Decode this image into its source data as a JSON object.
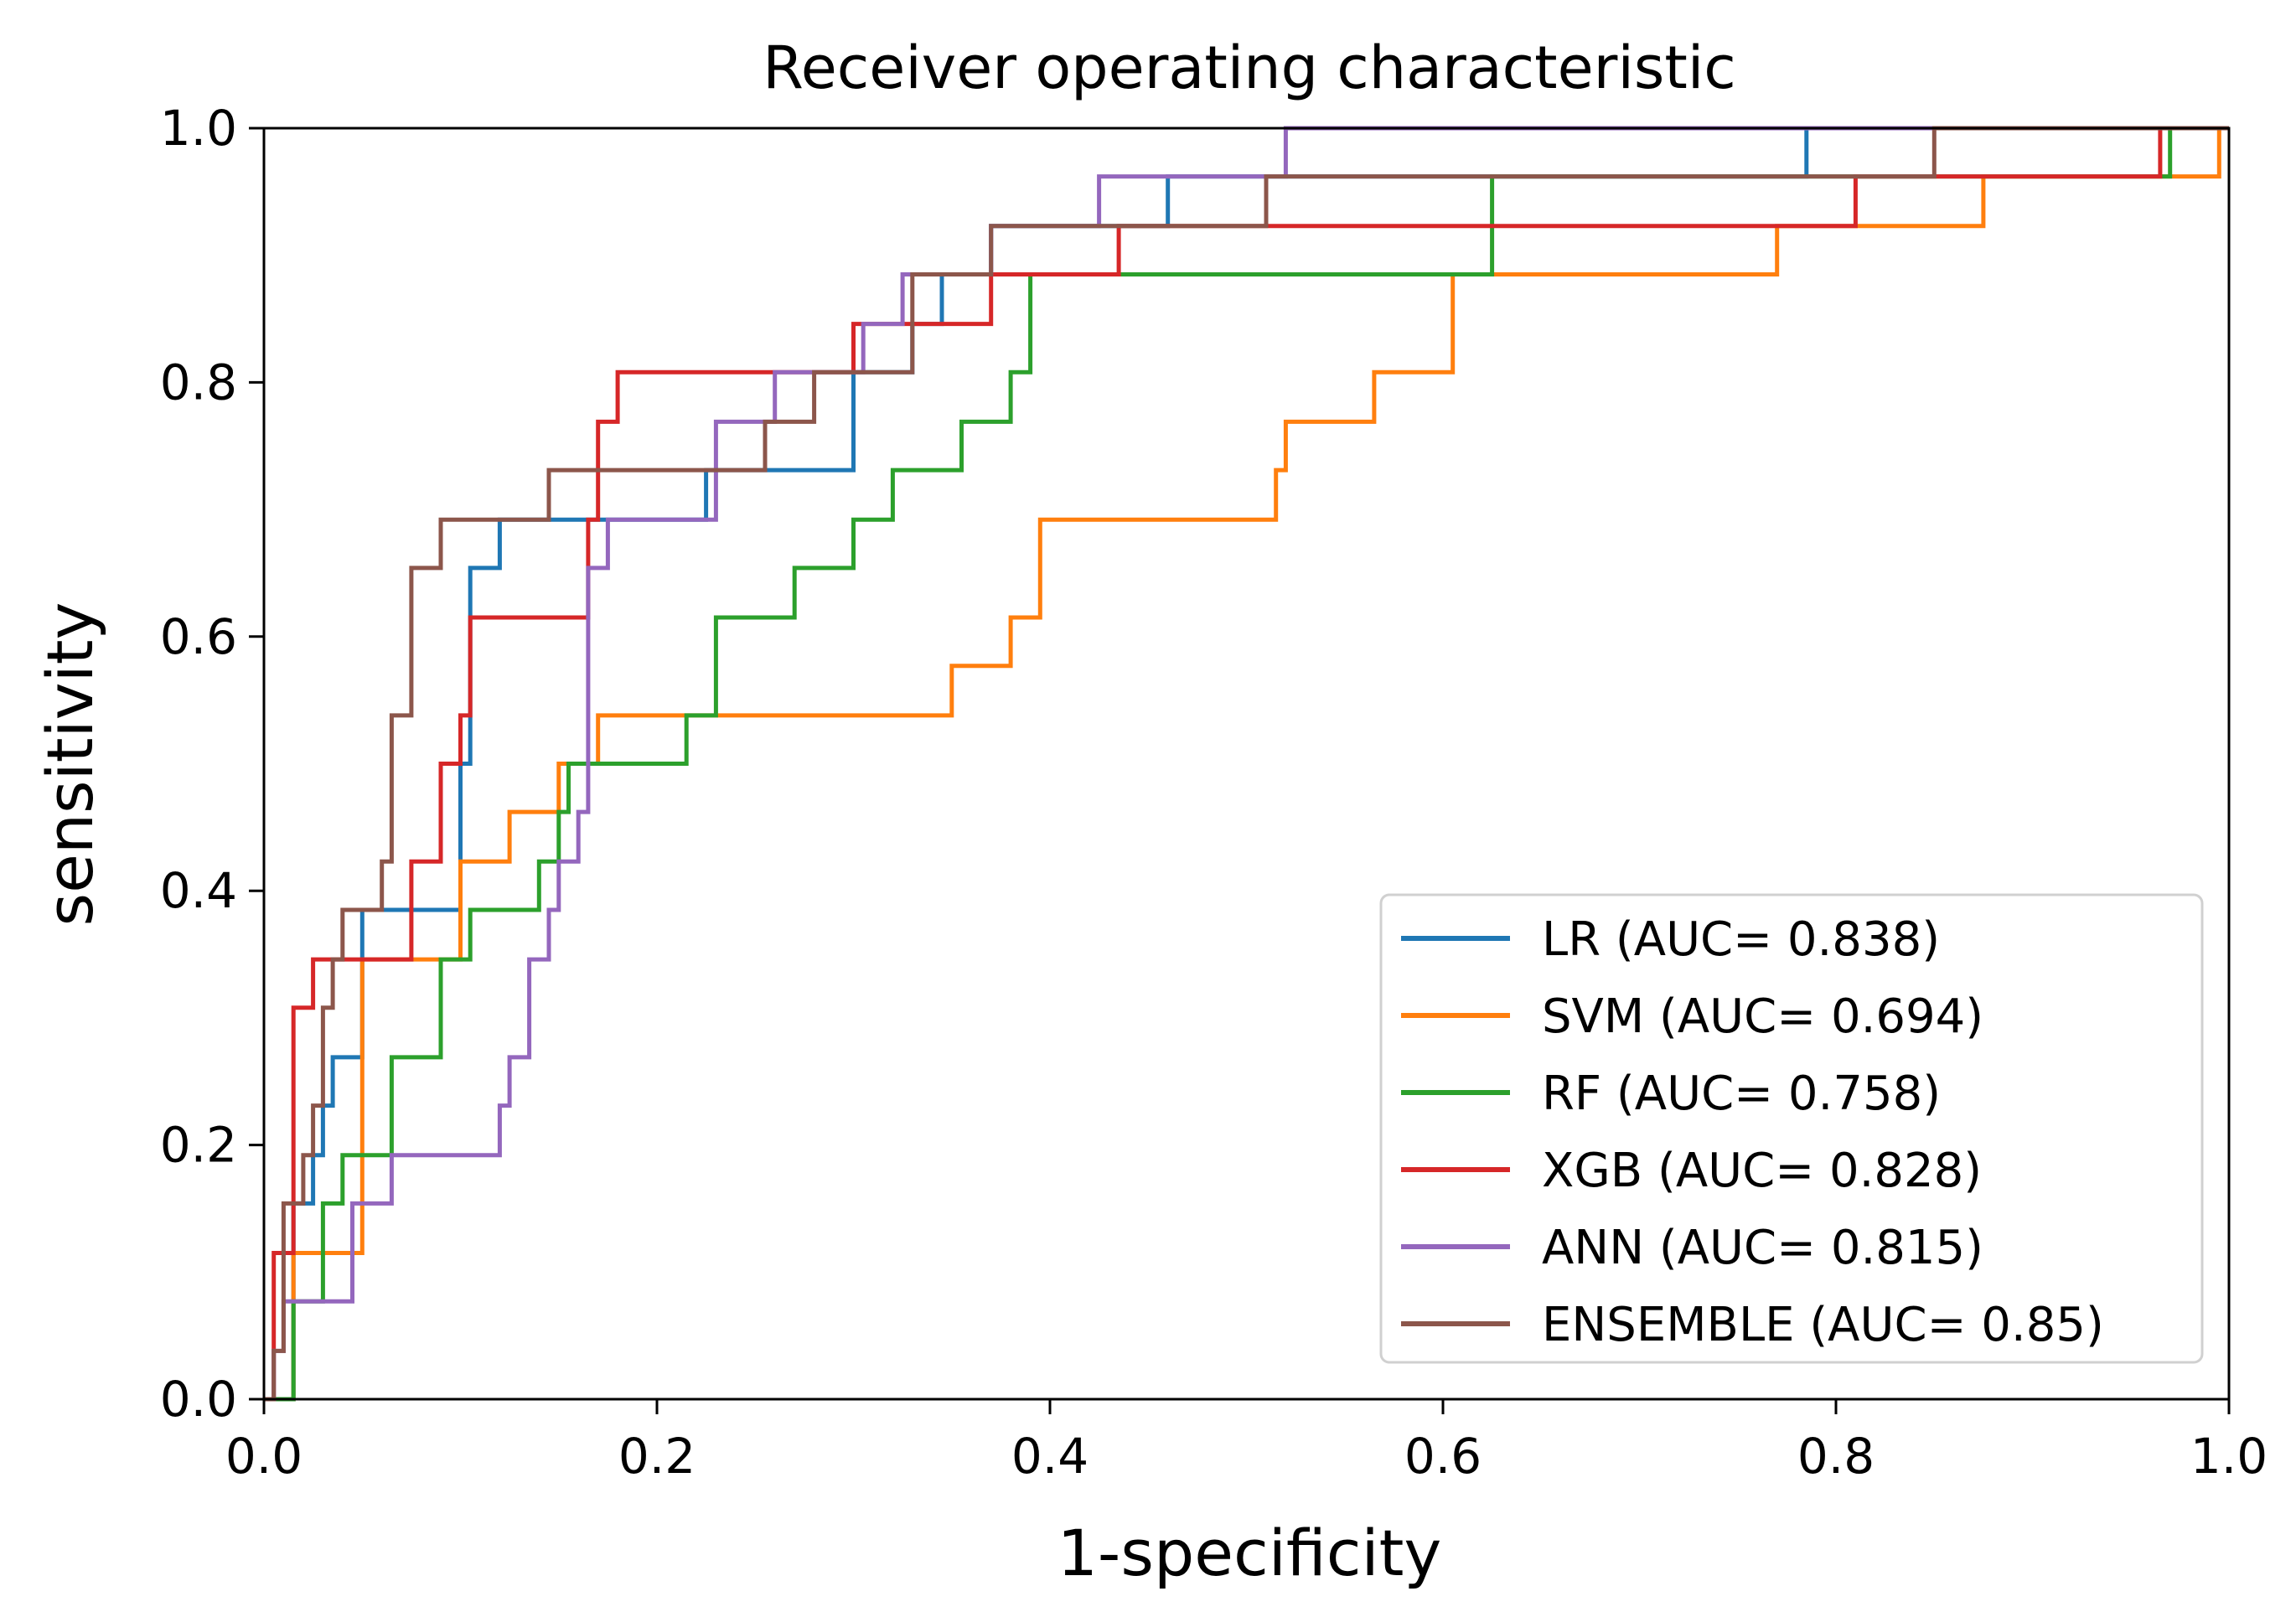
{
  "chart_data": {
    "type": "line",
    "title": "Receiver operating characteristic",
    "xlabel": "1-specificity",
    "ylabel": "sensitivity",
    "xlim": [
      0,
      1
    ],
    "ylim": [
      0,
      1
    ],
    "xticks": [
      "0.0",
      "0.2",
      "0.4",
      "0.6",
      "0.8",
      "1.0"
    ],
    "yticks": [
      "0.0",
      "0.2",
      "0.4",
      "0.6",
      "0.8",
      "1.0"
    ],
    "grid": false,
    "legend_position": "lower-right",
    "series": [
      {
        "name": "LR",
        "legend_label": "LR (AUC= 0.838)",
        "color": "#1f77b4",
        "points": [
          [
            0,
            0
          ],
          [
            0.015,
            0
          ],
          [
            0.015,
            0.154
          ],
          [
            0.025,
            0.154
          ],
          [
            0.025,
            0.192
          ],
          [
            0.03,
            0.192
          ],
          [
            0.03,
            0.231
          ],
          [
            0.035,
            0.231
          ],
          [
            0.035,
            0.269
          ],
          [
            0.05,
            0.269
          ],
          [
            0.05,
            0.385
          ],
          [
            0.1,
            0.385
          ],
          [
            0.1,
            0.5
          ],
          [
            0.105,
            0.5
          ],
          [
            0.105,
            0.654
          ],
          [
            0.12,
            0.654
          ],
          [
            0.12,
            0.692
          ],
          [
            0.225,
            0.692
          ],
          [
            0.225,
            0.731
          ],
          [
            0.3,
            0.731
          ],
          [
            0.3,
            0.808
          ],
          [
            0.33,
            0.808
          ],
          [
            0.33,
            0.846
          ],
          [
            0.345,
            0.846
          ],
          [
            0.345,
            0.885
          ],
          [
            0.37,
            0.885
          ],
          [
            0.37,
            0.923
          ],
          [
            0.46,
            0.923
          ],
          [
            0.46,
            0.962
          ],
          [
            0.785,
            0.962
          ],
          [
            0.785,
            1.0
          ],
          [
            1.0,
            1.0
          ]
        ]
      },
      {
        "name": "SVM",
        "legend_label": "SVM (AUC= 0.694)",
        "color": "#ff7f0e",
        "points": [
          [
            0,
            0
          ],
          [
            0.015,
            0
          ],
          [
            0.015,
            0.115
          ],
          [
            0.05,
            0.115
          ],
          [
            0.05,
            0.346
          ],
          [
            0.1,
            0.346
          ],
          [
            0.1,
            0.423
          ],
          [
            0.125,
            0.423
          ],
          [
            0.125,
            0.462
          ],
          [
            0.15,
            0.462
          ],
          [
            0.15,
            0.5
          ],
          [
            0.17,
            0.5
          ],
          [
            0.17,
            0.538
          ],
          [
            0.35,
            0.538
          ],
          [
            0.35,
            0.577
          ],
          [
            0.38,
            0.577
          ],
          [
            0.38,
            0.615
          ],
          [
            0.395,
            0.615
          ],
          [
            0.395,
            0.692
          ],
          [
            0.515,
            0.692
          ],
          [
            0.515,
            0.731
          ],
          [
            0.52,
            0.731
          ],
          [
            0.52,
            0.769
          ],
          [
            0.565,
            0.769
          ],
          [
            0.565,
            0.808
          ],
          [
            0.605,
            0.808
          ],
          [
            0.605,
            0.885
          ],
          [
            0.77,
            0.885
          ],
          [
            0.77,
            0.923
          ],
          [
            0.875,
            0.923
          ],
          [
            0.875,
            0.962
          ],
          [
            0.995,
            0.962
          ],
          [
            0.995,
            1.0
          ],
          [
            1.0,
            1.0
          ]
        ]
      },
      {
        "name": "RF",
        "legend_label": "RF (AUC= 0.758)",
        "color": "#2ca02c",
        "points": [
          [
            0,
            0
          ],
          [
            0.015,
            0
          ],
          [
            0.015,
            0.077
          ],
          [
            0.03,
            0.077
          ],
          [
            0.03,
            0.154
          ],
          [
            0.04,
            0.154
          ],
          [
            0.04,
            0.192
          ],
          [
            0.065,
            0.192
          ],
          [
            0.065,
            0.269
          ],
          [
            0.09,
            0.269
          ],
          [
            0.09,
            0.346
          ],
          [
            0.105,
            0.346
          ],
          [
            0.105,
            0.385
          ],
          [
            0.14,
            0.385
          ],
          [
            0.14,
            0.423
          ],
          [
            0.15,
            0.423
          ],
          [
            0.15,
            0.462
          ],
          [
            0.155,
            0.462
          ],
          [
            0.155,
            0.5
          ],
          [
            0.215,
            0.5
          ],
          [
            0.215,
            0.538
          ],
          [
            0.23,
            0.538
          ],
          [
            0.23,
            0.615
          ],
          [
            0.27,
            0.615
          ],
          [
            0.27,
            0.654
          ],
          [
            0.3,
            0.654
          ],
          [
            0.3,
            0.692
          ],
          [
            0.32,
            0.692
          ],
          [
            0.32,
            0.731
          ],
          [
            0.355,
            0.731
          ],
          [
            0.355,
            0.769
          ],
          [
            0.38,
            0.769
          ],
          [
            0.38,
            0.808
          ],
          [
            0.39,
            0.808
          ],
          [
            0.39,
            0.885
          ],
          [
            0.625,
            0.885
          ],
          [
            0.625,
            0.962
          ],
          [
            0.97,
            0.962
          ],
          [
            0.97,
            1.0
          ],
          [
            1.0,
            1.0
          ]
        ]
      },
      {
        "name": "XGB",
        "legend_label": "XGB (AUC= 0.828)",
        "color": "#d62728",
        "points": [
          [
            0,
            0
          ],
          [
            0.005,
            0
          ],
          [
            0.005,
            0.115
          ],
          [
            0.015,
            0.115
          ],
          [
            0.015,
            0.308
          ],
          [
            0.025,
            0.308
          ],
          [
            0.025,
            0.346
          ],
          [
            0.075,
            0.346
          ],
          [
            0.075,
            0.423
          ],
          [
            0.09,
            0.423
          ],
          [
            0.09,
            0.5
          ],
          [
            0.1,
            0.5
          ],
          [
            0.1,
            0.538
          ],
          [
            0.105,
            0.538
          ],
          [
            0.105,
            0.615
          ],
          [
            0.165,
            0.615
          ],
          [
            0.165,
            0.692
          ],
          [
            0.17,
            0.692
          ],
          [
            0.17,
            0.769
          ],
          [
            0.18,
            0.769
          ],
          [
            0.18,
            0.808
          ],
          [
            0.3,
            0.808
          ],
          [
            0.3,
            0.846
          ],
          [
            0.37,
            0.846
          ],
          [
            0.37,
            0.885
          ],
          [
            0.435,
            0.885
          ],
          [
            0.435,
            0.923
          ],
          [
            0.81,
            0.923
          ],
          [
            0.81,
            0.962
          ],
          [
            0.965,
            0.962
          ],
          [
            0.965,
            1.0
          ],
          [
            1.0,
            1.0
          ]
        ]
      },
      {
        "name": "ANN",
        "legend_label": "ANN (AUC= 0.815)",
        "color": "#9467bd",
        "points": [
          [
            0,
            0
          ],
          [
            0.005,
            0
          ],
          [
            0.005,
            0.038
          ],
          [
            0.01,
            0.038
          ],
          [
            0.01,
            0.077
          ],
          [
            0.045,
            0.077
          ],
          [
            0.045,
            0.154
          ],
          [
            0.065,
            0.154
          ],
          [
            0.065,
            0.192
          ],
          [
            0.12,
            0.192
          ],
          [
            0.12,
            0.231
          ],
          [
            0.125,
            0.231
          ],
          [
            0.125,
            0.269
          ],
          [
            0.135,
            0.269
          ],
          [
            0.135,
            0.346
          ],
          [
            0.145,
            0.346
          ],
          [
            0.145,
            0.385
          ],
          [
            0.15,
            0.385
          ],
          [
            0.15,
            0.423
          ],
          [
            0.16,
            0.423
          ],
          [
            0.16,
            0.462
          ],
          [
            0.165,
            0.462
          ],
          [
            0.165,
            0.654
          ],
          [
            0.175,
            0.654
          ],
          [
            0.175,
            0.692
          ],
          [
            0.23,
            0.692
          ],
          [
            0.23,
            0.769
          ],
          [
            0.26,
            0.769
          ],
          [
            0.26,
            0.808
          ],
          [
            0.305,
            0.808
          ],
          [
            0.305,
            0.846
          ],
          [
            0.325,
            0.846
          ],
          [
            0.325,
            0.885
          ],
          [
            0.37,
            0.885
          ],
          [
            0.37,
            0.923
          ],
          [
            0.425,
            0.923
          ],
          [
            0.425,
            0.962
          ],
          [
            0.52,
            0.962
          ],
          [
            0.52,
            1.0
          ],
          [
            1.0,
            1.0
          ]
        ]
      },
      {
        "name": "ENSEMBLE",
        "legend_label": "ENSEMBLE (AUC= 0.85)",
        "color": "#8c564b",
        "points": [
          [
            0,
            0
          ],
          [
            0.005,
            0
          ],
          [
            0.005,
            0.038
          ],
          [
            0.01,
            0.038
          ],
          [
            0.01,
            0.154
          ],
          [
            0.02,
            0.154
          ],
          [
            0.02,
            0.192
          ],
          [
            0.025,
            0.192
          ],
          [
            0.025,
            0.231
          ],
          [
            0.03,
            0.231
          ],
          [
            0.03,
            0.308
          ],
          [
            0.035,
            0.308
          ],
          [
            0.035,
            0.346
          ],
          [
            0.04,
            0.346
          ],
          [
            0.04,
            0.385
          ],
          [
            0.06,
            0.385
          ],
          [
            0.06,
            0.423
          ],
          [
            0.065,
            0.423
          ],
          [
            0.065,
            0.538
          ],
          [
            0.075,
            0.538
          ],
          [
            0.075,
            0.654
          ],
          [
            0.09,
            0.654
          ],
          [
            0.09,
            0.692
          ],
          [
            0.145,
            0.692
          ],
          [
            0.145,
            0.731
          ],
          [
            0.255,
            0.731
          ],
          [
            0.255,
            0.769
          ],
          [
            0.28,
            0.769
          ],
          [
            0.28,
            0.808
          ],
          [
            0.33,
            0.808
          ],
          [
            0.33,
            0.885
          ],
          [
            0.37,
            0.885
          ],
          [
            0.37,
            0.923
          ],
          [
            0.51,
            0.923
          ],
          [
            0.51,
            0.962
          ],
          [
            0.85,
            0.962
          ],
          [
            0.85,
            1.0
          ],
          [
            1.0,
            1.0
          ]
        ]
      }
    ]
  }
}
